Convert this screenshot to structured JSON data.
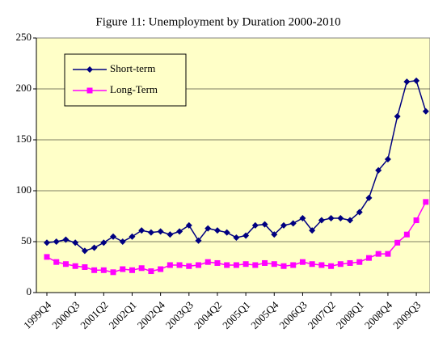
{
  "chart_data": {
    "type": "line",
    "title": "Figure 11: Unemployment by Duration 2000-2010",
    "categories": [
      "1999Q4",
      null,
      null,
      "2000Q3",
      null,
      null,
      "2001Q2",
      null,
      null,
      "2002Q1",
      null,
      null,
      "2002Q4",
      null,
      null,
      "2003Q3",
      null,
      null,
      "2004Q2",
      null,
      null,
      "2005Q1",
      null,
      null,
      "2005Q4",
      null,
      null,
      "2006Q3",
      null,
      null,
      "2007Q2",
      null,
      null,
      "2008Q1",
      null,
      null,
      "2008Q4",
      null,
      null,
      "2009Q3",
      null
    ],
    "series": [
      {
        "name": "Short-term",
        "color": "#000080",
        "marker": "diamond",
        "values": [
          49,
          50,
          52,
          49,
          41,
          44,
          49,
          55,
          50,
          55,
          61,
          59,
          60,
          57,
          60,
          66,
          51,
          63,
          61,
          59,
          54,
          56,
          66,
          67,
          57,
          66,
          68,
          73,
          61,
          71,
          73,
          73,
          71,
          79,
          93,
          120,
          131,
          173,
          207,
          208,
          178
        ]
      },
      {
        "name": "Long-Term",
        "color": "#ff00ff",
        "marker": "square",
        "values": [
          35,
          30,
          28,
          26,
          25,
          22,
          22,
          20,
          23,
          22,
          24,
          21,
          23,
          27,
          27,
          26,
          27,
          30,
          29,
          27,
          27,
          28,
          27,
          29,
          28,
          26,
          27,
          30,
          28,
          27,
          26,
          28,
          29,
          30,
          34,
          38,
          38,
          49,
          57,
          71,
          89
        ]
      }
    ],
    "ylim": [
      0,
      250
    ],
    "yticks": [
      0,
      50,
      100,
      150,
      200,
      250
    ],
    "grid": true,
    "legend": "upper left",
    "background": "#ffffc8"
  }
}
